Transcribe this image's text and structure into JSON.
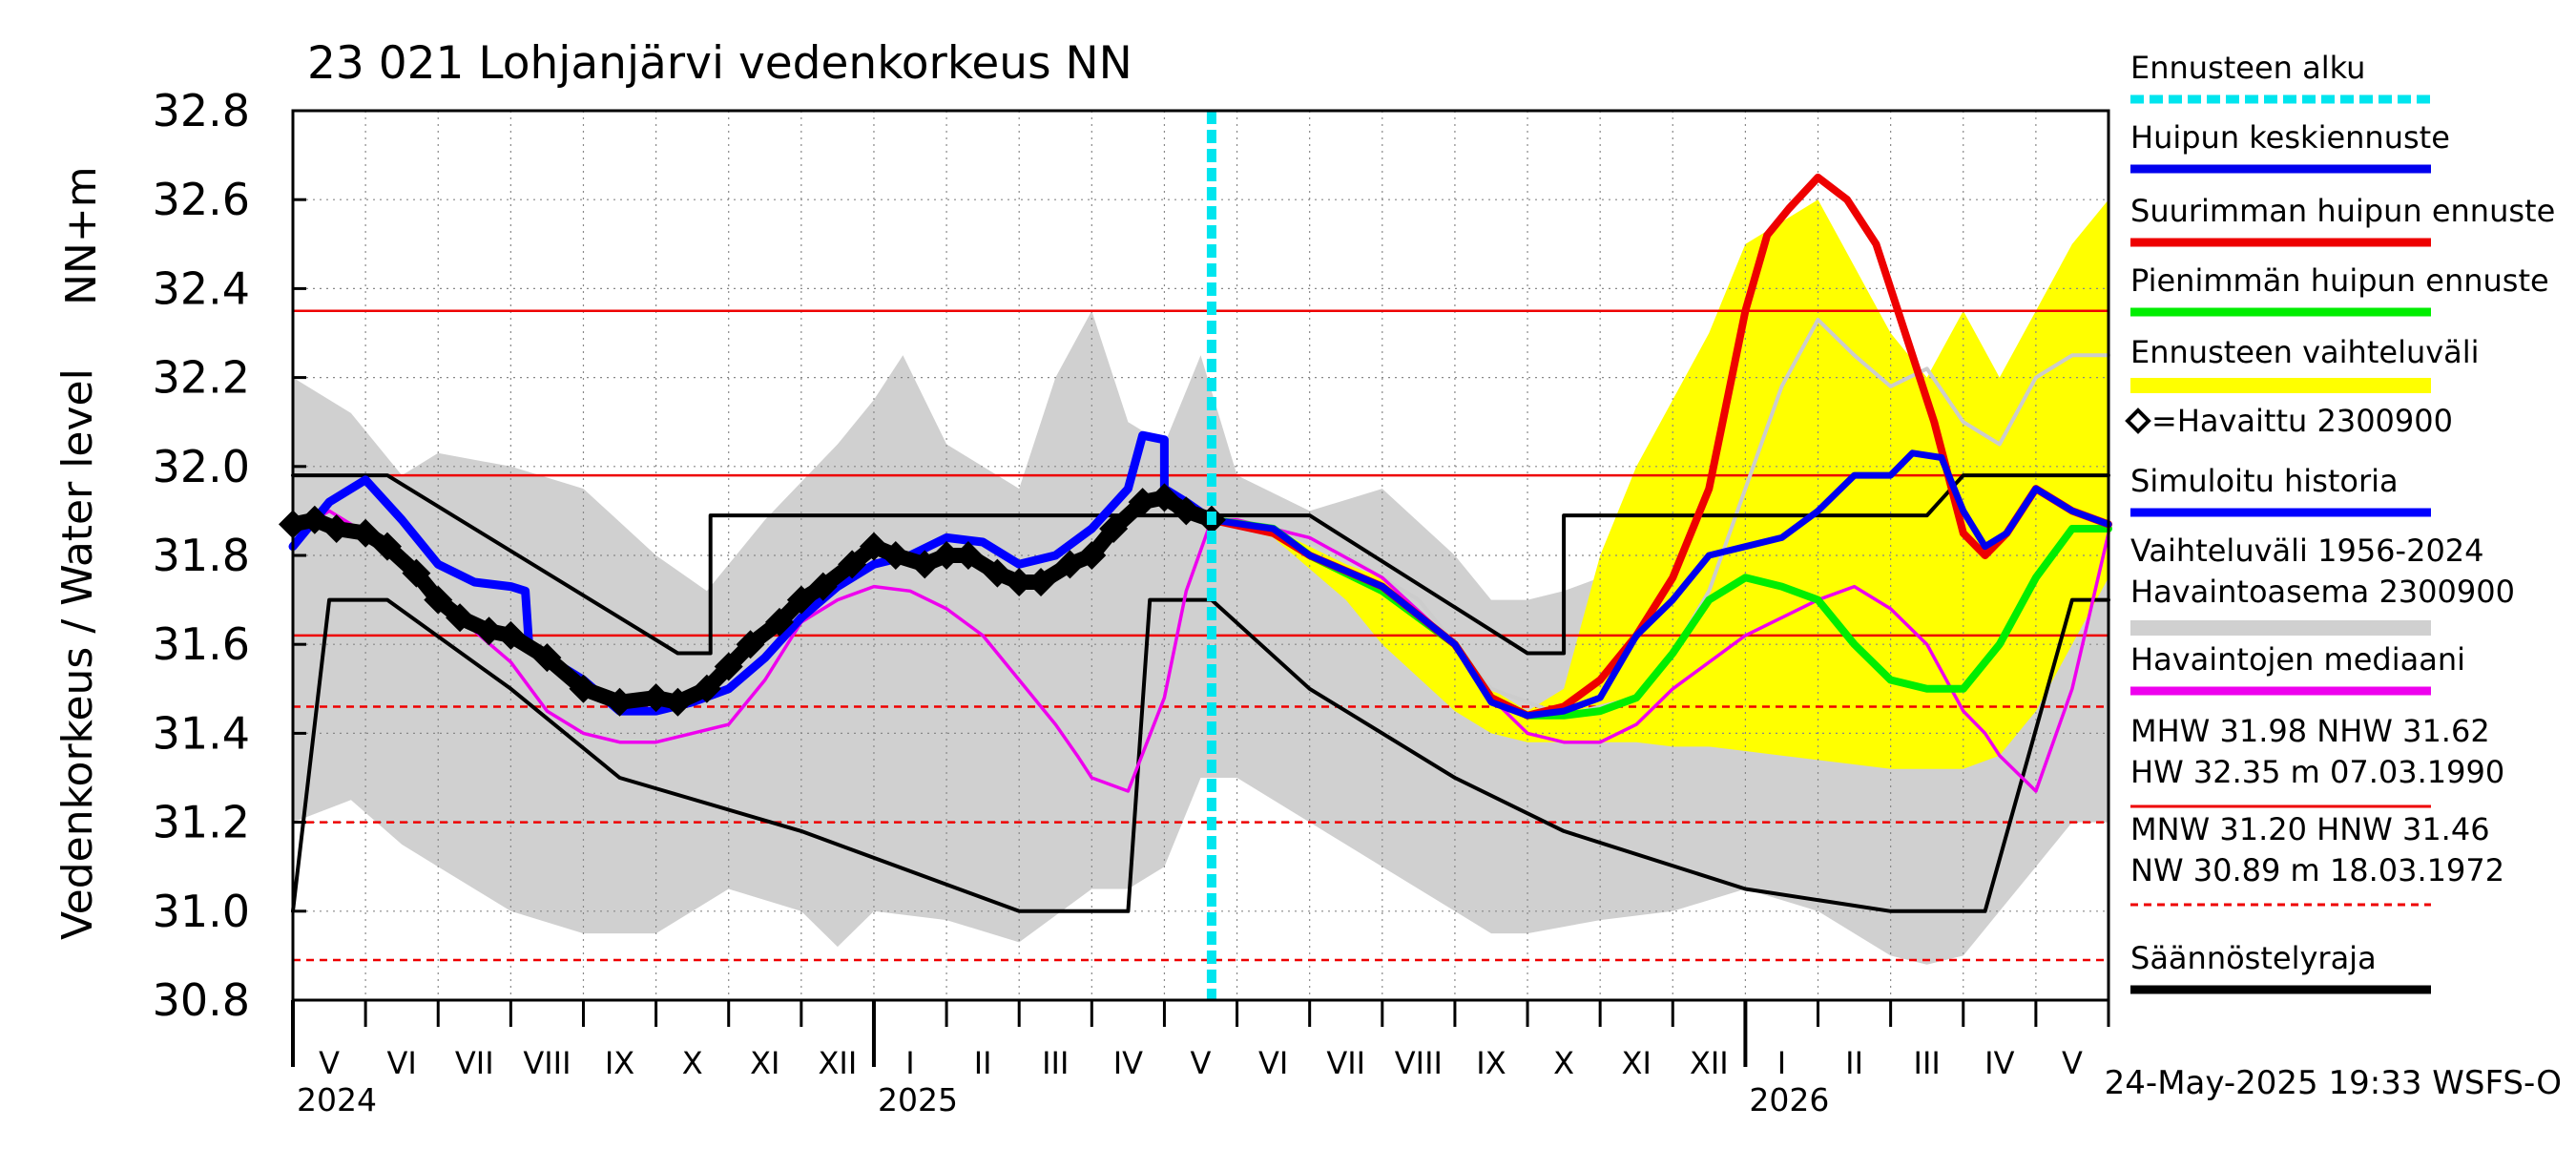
{
  "chart_data": {
    "type": "line",
    "title": "23 021 Lohjanjärvi vedenkorkeus NN",
    "ylabel_main": "Vedenkorkeus / Water level",
    "ylabel_unit": "NN+m",
    "ylim": [
      30.8,
      32.8
    ],
    "yticks": [
      "32.8",
      "32.6",
      "32.4",
      "32.2",
      "32.0",
      "31.8",
      "31.6",
      "31.4",
      "31.2",
      "31.0",
      "30.8"
    ],
    "x_range_months": [
      0,
      25
    ],
    "months": [
      "V",
      "VI",
      "VII",
      "VIII",
      "IX",
      "X",
      "XI",
      "XII",
      "I",
      "II",
      "III",
      "IV",
      "V",
      "VI",
      "VII",
      "VIII",
      "IX",
      "X",
      "XI",
      "XII",
      "I",
      "II",
      "III",
      "IV",
      "V"
    ],
    "years": [
      {
        "label": "2024",
        "at": 0
      },
      {
        "label": "2025",
        "at": 8
      },
      {
        "label": "2026",
        "at": 20
      }
    ],
    "forecast_start": 12.65,
    "reference_lines": [
      {
        "name": "HW",
        "value": 32.35,
        "style": "solid",
        "color": "#ee0000"
      },
      {
        "name": "MHW",
        "value": 31.98,
        "style": "solid",
        "color": "#ee0000"
      },
      {
        "name": "NHW",
        "value": 31.62,
        "style": "solid",
        "color": "#ee0000"
      },
      {
        "name": "HNW",
        "value": 31.46,
        "style": "dashed",
        "color": "#ee0000"
      },
      {
        "name": "MNW",
        "value": 31.2,
        "style": "dashed",
        "color": "#ee0000"
      },
      {
        "name": "NW",
        "value": 30.89,
        "style": "dashed",
        "color": "#ee0000"
      }
    ],
    "series": [
      {
        "name": "Vaihteluväli 1956-2024 (upper)",
        "color": "#d0d0d0",
        "x": [
          0,
          0.8,
          1.5,
          2,
          3,
          4,
          5,
          5.7,
          6.5,
          7.5,
          8,
          8.4,
          9,
          10,
          10.5,
          11,
          11.5,
          12,
          12.5,
          13,
          14,
          15,
          16,
          16.5,
          17,
          17.5,
          18,
          18.5,
          19,
          20,
          21,
          21.5,
          22,
          22.5,
          23,
          23.5,
          24,
          25
        ],
        "values": [
          32.2,
          32.12,
          31.98,
          32.03,
          32.0,
          31.95,
          31.8,
          31.72,
          31.88,
          32.05,
          32.15,
          32.25,
          32.05,
          31.95,
          32.2,
          32.35,
          32.1,
          32.05,
          32.25,
          31.98,
          31.9,
          31.95,
          31.8,
          31.7,
          31.7,
          31.72,
          31.75,
          31.8,
          31.85,
          31.9,
          31.98,
          32.05,
          32.15,
          31.95,
          32.0,
          32.1,
          32.0,
          32.0
        ]
      },
      {
        "name": "Vaihteluväli 1956-2024 (lower)",
        "color": "#d0d0d0",
        "x": [
          0,
          0.8,
          1.5,
          2,
          3,
          4,
          5,
          5.5,
          6,
          7,
          7.5,
          8,
          9,
          10,
          11,
          11.5,
          12,
          12.5,
          13,
          14,
          15,
          16,
          16.5,
          17,
          18,
          19,
          20,
          21,
          21.5,
          22,
          22.5,
          23,
          23.5,
          24,
          24.5,
          25
        ],
        "values": [
          31.2,
          31.25,
          31.15,
          31.1,
          31.0,
          30.95,
          30.95,
          31.0,
          31.05,
          31.0,
          30.92,
          31.0,
          30.98,
          30.93,
          31.05,
          31.05,
          31.1,
          31.3,
          31.3,
          31.2,
          31.1,
          31.0,
          30.95,
          30.95,
          30.98,
          31.0,
          31.05,
          31.0,
          30.95,
          30.9,
          30.88,
          30.9,
          31.0,
          31.1,
          31.2,
          31.2
        ]
      },
      {
        "name": "Ennusteen vaihteluväli (upper)",
        "color": "#ffff00",
        "x": [
          12.65,
          13.5,
          14.5,
          15,
          16,
          16.5,
          17,
          17.5,
          18,
          18.5,
          19,
          19.5,
          20,
          20.5,
          21,
          21.5,
          22,
          22.5,
          23,
          23.5,
          24,
          24.5,
          25
        ],
        "values": [
          31.88,
          31.86,
          31.78,
          31.75,
          31.6,
          31.5,
          31.45,
          31.5,
          31.8,
          32.0,
          32.15,
          32.3,
          32.5,
          32.55,
          32.6,
          32.45,
          32.3,
          32.2,
          32.35,
          32.2,
          32.35,
          32.5,
          32.6
        ]
      },
      {
        "name": "Ennusteen vaihteluväli (lower)",
        "color": "#ffff00",
        "x": [
          12.65,
          13.5,
          14.5,
          15,
          16,
          16.5,
          17,
          17.5,
          18,
          18.5,
          19,
          19.5,
          20,
          20.5,
          21,
          21.5,
          22,
          22.5,
          23,
          23.5,
          24,
          24.5,
          25
        ],
        "values": [
          31.88,
          31.84,
          31.7,
          31.6,
          31.45,
          31.4,
          31.38,
          31.38,
          31.38,
          31.38,
          31.37,
          31.37,
          31.36,
          31.35,
          31.34,
          31.33,
          31.32,
          31.32,
          31.32,
          31.35,
          31.45,
          31.6,
          31.75
        ]
      },
      {
        "name": "Simuloitu historia",
        "color": "#0000ff",
        "x": [
          0,
          0.5,
          1,
          1.5,
          2,
          2.5,
          3,
          3.2,
          3.25,
          3.5,
          4,
          4.5,
          5,
          5.5,
          6,
          6.5,
          7,
          7.5,
          8,
          8.5,
          9,
          9.5,
          10,
          10.5,
          11,
          11.5,
          11.7,
          12,
          12,
          12.3,
          12.65
        ],
        "values": [
          31.82,
          31.92,
          31.97,
          31.88,
          31.78,
          31.74,
          31.73,
          31.72,
          31.6,
          31.57,
          31.52,
          31.45,
          31.45,
          31.47,
          31.5,
          31.57,
          31.66,
          31.73,
          31.78,
          31.8,
          31.84,
          31.83,
          31.78,
          31.8,
          31.86,
          31.95,
          32.07,
          32.06,
          31.95,
          31.92,
          31.88
        ]
      },
      {
        "name": "Havaittu 2300900",
        "color": "#000000",
        "x": [
          0,
          0.3,
          0.6,
          1,
          1.3,
          1.7,
          2,
          2.3,
          2.7,
          3,
          3.5,
          4,
          4.5,
          5,
          5.3,
          5.7,
          6,
          6.3,
          6.7,
          7,
          7.3,
          7.7,
          8,
          8.3,
          8.7,
          9,
          9.3,
          9.7,
          10,
          10.3,
          10.7,
          11,
          11.3,
          11.7,
          12,
          12.3,
          12.65
        ],
        "values": [
          31.87,
          31.88,
          31.86,
          31.85,
          31.82,
          31.76,
          31.7,
          31.66,
          31.63,
          31.62,
          31.57,
          31.5,
          31.47,
          31.48,
          31.47,
          31.5,
          31.55,
          31.6,
          31.65,
          31.7,
          31.73,
          31.78,
          31.82,
          31.8,
          31.78,
          31.8,
          31.8,
          31.76,
          31.74,
          31.74,
          31.78,
          31.8,
          31.86,
          31.92,
          31.93,
          31.9,
          31.88
        ]
      },
      {
        "name": "Havaintojen mediaani",
        "color": "#ee00ee",
        "x": [
          0,
          0.5,
          1,
          1.5,
          2,
          2.5,
          3,
          3.5,
          4,
          4.5,
          5,
          5.5,
          6,
          6.5,
          7,
          7.5,
          8,
          8.5,
          9,
          9.5,
          10,
          10.5,
          10.8,
          11,
          11.5,
          12,
          12.3,
          12.65,
          13,
          14,
          15,
          16,
          16.5,
          17,
          17.5,
          18,
          18.5,
          19,
          20,
          21,
          21.5,
          22,
          22.5,
          23,
          23.3,
          23.5,
          24,
          24.5,
          25
        ],
        "values": [
          31.85,
          31.9,
          31.85,
          31.78,
          31.7,
          31.63,
          31.56,
          31.45,
          31.4,
          31.38,
          31.38,
          31.4,
          31.42,
          31.52,
          31.65,
          31.7,
          31.73,
          31.72,
          31.68,
          31.62,
          31.52,
          31.42,
          31.35,
          31.3,
          31.27,
          31.48,
          31.72,
          31.88,
          31.88,
          31.84,
          31.75,
          31.6,
          31.48,
          31.4,
          31.38,
          31.38,
          31.42,
          31.5,
          31.62,
          31.7,
          31.73,
          31.68,
          31.6,
          31.45,
          31.4,
          31.35,
          31.27,
          31.5,
          31.85
        ]
      },
      {
        "name": "Ennusteen vaihteluväli (median)",
        "color": "#cccccc",
        "x": [
          12.65,
          13.5,
          14.5,
          15.5,
          16.5,
          17.5,
          18.5,
          19,
          19.5,
          20,
          20.5,
          21,
          21.5,
          22,
          22.5,
          23,
          23.5,
          24,
          24.5,
          25
        ],
        "values": [
          31.88,
          31.86,
          31.8,
          31.7,
          31.5,
          31.44,
          31.48,
          31.58,
          31.72,
          31.95,
          32.18,
          32.33,
          32.25,
          32.18,
          32.22,
          32.1,
          32.05,
          32.2,
          32.25,
          32.25
        ]
      },
      {
        "name": "Pienimmän huipun ennuste",
        "color": "#00ee00",
        "x": [
          12.65,
          13.5,
          14,
          15,
          16,
          16.5,
          17,
          17.5,
          18,
          18.5,
          19,
          19.5,
          20,
          20.5,
          21,
          21.5,
          22,
          22.5,
          23,
          23.5,
          24,
          24.5,
          25
        ],
        "values": [
          31.88,
          31.86,
          31.8,
          31.72,
          31.6,
          31.48,
          31.44,
          31.44,
          31.45,
          31.48,
          31.58,
          31.7,
          31.75,
          31.73,
          31.7,
          31.6,
          31.52,
          31.5,
          31.5,
          31.6,
          31.75,
          31.86,
          31.86
        ]
      },
      {
        "name": "Suurimman huipun ennuste",
        "color": "#ee0000",
        "x": [
          12.65,
          13.5,
          14,
          15,
          16,
          16.5,
          17,
          17.5,
          18,
          18.5,
          19,
          19.5,
          20,
          20.3,
          20.6,
          21,
          21.4,
          21.8,
          22.2,
          22.6,
          23,
          23.3,
          23.6,
          24,
          24.5,
          25
        ],
        "values": [
          31.88,
          31.85,
          31.8,
          31.73,
          31.6,
          31.48,
          31.44,
          31.46,
          31.52,
          31.62,
          31.75,
          31.95,
          32.35,
          32.52,
          32.58,
          32.65,
          32.6,
          32.5,
          32.3,
          32.1,
          31.85,
          31.8,
          31.85,
          31.95,
          31.9,
          31.87
        ]
      },
      {
        "name": "Huipun keskiennuste",
        "color": "#0000ee",
        "x": [
          12.65,
          13.5,
          14,
          15,
          16,
          16.5,
          17,
          17.5,
          18,
          18.5,
          19,
          19.5,
          20,
          20.5,
          21,
          21.5,
          22,
          22.3,
          22.7,
          23,
          23.3,
          23.6,
          24,
          24.5,
          25
        ],
        "values": [
          31.88,
          31.86,
          31.8,
          31.73,
          31.6,
          31.47,
          31.44,
          31.45,
          31.48,
          31.62,
          31.7,
          31.8,
          31.82,
          31.84,
          31.9,
          31.98,
          31.98,
          32.03,
          32.02,
          31.9,
          31.82,
          31.85,
          31.95,
          31.9,
          31.87
        ]
      },
      {
        "name": "Säännöstelyraja (upper)",
        "color": "#000000",
        "x": [
          0,
          1.3,
          5.3,
          5.75,
          5.75,
          12.65,
          14,
          17,
          17.5,
          17.5,
          20,
          22,
          22.5,
          23,
          25
        ],
        "values": [
          31.98,
          31.98,
          31.58,
          31.58,
          31.89,
          31.89,
          31.89,
          31.58,
          31.58,
          31.89,
          31.89,
          31.89,
          31.89,
          31.98,
          31.98
        ]
      },
      {
        "name": "Säännöstelyraja (lower)",
        "color": "#000000",
        "x": [
          0,
          0.5,
          1.3,
          3.0,
          4.5,
          7,
          10,
          11,
          11.5,
          11.8,
          12.2,
          12.65,
          14,
          16,
          17.5,
          20,
          22,
          23,
          23.3,
          24.5,
          25
        ],
        "values": [
          31.0,
          31.7,
          31.7,
          31.5,
          31.3,
          31.18,
          31.0,
          31.0,
          31.0,
          31.7,
          31.7,
          31.7,
          31.5,
          31.3,
          31.18,
          31.05,
          31.0,
          31.0,
          31.0,
          31.7,
          31.7
        ]
      }
    ],
    "legend": {
      "items": [
        {
          "label": "Ennusteen alku",
          "color": "#00e5ee",
          "style": "dotted"
        },
        {
          "label": "Huipun keskiennuste",
          "color": "#0000ee",
          "style": "solid"
        },
        {
          "label": "Suurimman huipun ennuste",
          "color": "#ee0000",
          "style": "solid"
        },
        {
          "label": "Pienimmän huipun ennuste",
          "color": "#00ee00",
          "style": "solid"
        },
        {
          "label": "Ennusteen vaihteluväli",
          "color": "#ffff00",
          "style": "band"
        },
        {
          "label": "=Havaittu 2300900",
          "color": "#000000",
          "style": "marker"
        },
        {
          "label": "Simuloitu historia",
          "color": "#0000ff",
          "style": "solid"
        },
        {
          "label": "Vaihteluväli 1956-2024",
          "label2": " Havaintoasema 2300900",
          "color": "#d0d0d0",
          "style": "band"
        },
        {
          "label": "Havaintojen mediaani",
          "color": "#ee00ee",
          "style": "solid"
        },
        {
          "label": "MHW  31.98 NHW  31.62",
          "label2": "HW  32.35 m 07.03.1990",
          "color": "#ee0000",
          "style": "solid"
        },
        {
          "label": "MNW  31.20 HNW  31.46",
          "label2": "NW  30.89 m 18.03.1972",
          "color": "#ee0000",
          "style": "dashed"
        },
        {
          "label": "Säännöstelyraja",
          "color": "#000000",
          "style": "solid"
        }
      ]
    },
    "timestamp": "24-May-2025 19:33 WSFS-O"
  }
}
